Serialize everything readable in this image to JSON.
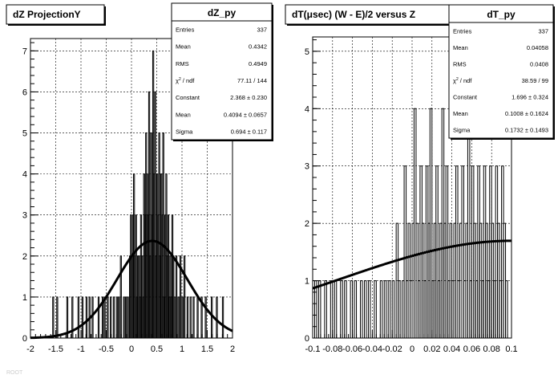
{
  "chart_data": [
    {
      "type": "bar",
      "title": "dZ ProjectionY",
      "stats_title": "dZ_py",
      "stats": [
        {
          "label": "Entries",
          "value": "337"
        },
        {
          "label": "Mean",
          "value": "0.4342"
        },
        {
          "label": "RMS",
          "value": "0.4949"
        },
        {
          "label": "χ² / ndf",
          "value": "77.11 / 144"
        },
        {
          "label": "Constant",
          "value": "2.368 ± 0.230"
        },
        {
          "label": "Mean",
          "value": "0.4094 ± 0.0657"
        },
        {
          "label": "Sigma",
          "value": "0.694 ± 0.117"
        }
      ],
      "xlim": [
        -2,
        2
      ],
      "ylim": [
        0,
        7.3
      ],
      "xticks": [
        -2,
        -1.5,
        -1,
        -0.5,
        0,
        0.5,
        1,
        1.5,
        2
      ],
      "xtick_labels": [
        "-2",
        "-1.5",
        "-1",
        "-0.5",
        "0",
        "0.5",
        "1",
        "1.5",
        "2"
      ],
      "yticks": [
        0,
        1,
        2,
        3,
        4,
        5,
        6,
        7
      ],
      "ytick_labels": [
        "0",
        "1",
        "2",
        "3",
        "4",
        "5",
        "6",
        "7"
      ],
      "grid": true,
      "bin_width": 0.02,
      "histogram": [
        [
          -1.55,
          1
        ],
        [
          -1.47,
          1
        ],
        [
          -1.27,
          1
        ],
        [
          -1.17,
          1
        ],
        [
          -1.05,
          1
        ],
        [
          -0.97,
          1
        ],
        [
          -0.89,
          1
        ],
        [
          -0.83,
          1
        ],
        [
          -0.77,
          1
        ],
        [
          -0.65,
          1
        ],
        [
          -0.57,
          1
        ],
        [
          -0.53,
          1
        ],
        [
          -0.47,
          1
        ],
        [
          -0.41,
          1
        ],
        [
          -0.35,
          1
        ],
        [
          -0.29,
          1
        ],
        [
          -0.25,
          1
        ],
        [
          -0.21,
          2
        ],
        [
          -0.15,
          1
        ],
        [
          -0.11,
          1
        ],
        [
          -0.07,
          1
        ],
        [
          -0.03,
          2
        ],
        [
          -0.01,
          3
        ],
        [
          0.01,
          2
        ],
        [
          0.03,
          3
        ],
        [
          0.05,
          4
        ],
        [
          0.07,
          2
        ],
        [
          0.09,
          3
        ],
        [
          0.11,
          1
        ],
        [
          0.13,
          2
        ],
        [
          0.15,
          2
        ],
        [
          0.17,
          1
        ],
        [
          0.19,
          3
        ],
        [
          0.21,
          2
        ],
        [
          0.23,
          1
        ],
        [
          0.25,
          4
        ],
        [
          0.27,
          3
        ],
        [
          0.29,
          5
        ],
        [
          0.31,
          4
        ],
        [
          0.33,
          3
        ],
        [
          0.35,
          6
        ],
        [
          0.37,
          2
        ],
        [
          0.39,
          5
        ],
        [
          0.41,
          3
        ],
        [
          0.43,
          7
        ],
        [
          0.45,
          4
        ],
        [
          0.47,
          6
        ],
        [
          0.49,
          2
        ],
        [
          0.51,
          4
        ],
        [
          0.53,
          3
        ],
        [
          0.55,
          5
        ],
        [
          0.57,
          2
        ],
        [
          0.59,
          4
        ],
        [
          0.61,
          3
        ],
        [
          0.63,
          5
        ],
        [
          0.65,
          1
        ],
        [
          0.67,
          3
        ],
        [
          0.69,
          4
        ],
        [
          0.71,
          2
        ],
        [
          0.73,
          3
        ],
        [
          0.75,
          1
        ],
        [
          0.77,
          2
        ],
        [
          0.79,
          1
        ],
        [
          0.81,
          3
        ],
        [
          0.83,
          2
        ],
        [
          0.85,
          1
        ],
        [
          0.89,
          2
        ],
        [
          0.93,
          1
        ],
        [
          0.97,
          2
        ],
        [
          1.01,
          1
        ],
        [
          1.05,
          2
        ],
        [
          1.11,
          1
        ],
        [
          1.17,
          1
        ],
        [
          1.23,
          1
        ],
        [
          1.31,
          1
        ],
        [
          1.39,
          1
        ],
        [
          1.47,
          1
        ],
        [
          1.59,
          1
        ],
        [
          1.69,
          1
        ],
        [
          1.81,
          1
        ]
      ],
      "fit": {
        "type": "gaus",
        "constant": 2.368,
        "mean": 0.4094,
        "sigma": 0.694
      }
    },
    {
      "type": "bar",
      "title": "dT(μsec) (W - E)/2 versus Z",
      "stats_title": "dT_py",
      "stats": [
        {
          "label": "Entries",
          "value": "337"
        },
        {
          "label": "Mean",
          "value": "0.04058"
        },
        {
          "label": "RMS",
          "value": "0.0408"
        },
        {
          "label": "χ² / ndf",
          "value": "38.59 / 99"
        },
        {
          "label": "Constant",
          "value": "1.696 ± 0.324"
        },
        {
          "label": "Mean",
          "value": "0.1008 ± 0.1624"
        },
        {
          "label": "Sigma",
          "value": "0.1732 ± 0.1493"
        }
      ],
      "xlim": [
        -0.1,
        0.1
      ],
      "ylim": [
        0,
        5.25
      ],
      "xticks": [
        -0.1,
        -0.08,
        -0.06,
        -0.04,
        -0.02,
        0,
        0.02,
        0.04,
        0.06,
        0.08,
        0.1
      ],
      "xtick_labels": [
        "-0.1",
        "-0.08",
        "-0.06",
        "-0.04",
        "-0.02",
        "0",
        "0.02",
        "0.04",
        "0.06",
        "0.08",
        "0.1"
      ],
      "yticks": [
        0,
        1,
        2,
        3,
        4,
        5
      ],
      "ytick_labels": [
        "0",
        "1",
        "2",
        "3",
        "4",
        "5"
      ],
      "grid": true,
      "bin_width": 0.002,
      "histogram": [
        [
          -0.097,
          1
        ],
        [
          -0.093,
          1
        ],
        [
          -0.087,
          1
        ],
        [
          -0.081,
          1
        ],
        [
          -0.077,
          1
        ],
        [
          -0.071,
          1
        ],
        [
          -0.067,
          1
        ],
        [
          -0.061,
          1
        ],
        [
          -0.057,
          1
        ],
        [
          -0.051,
          1
        ],
        [
          -0.047,
          1
        ],
        [
          -0.043,
          1
        ],
        [
          -0.037,
          1
        ],
        [
          -0.031,
          1
        ],
        [
          -0.027,
          1
        ],
        [
          -0.023,
          1
        ],
        [
          -0.019,
          1
        ],
        [
          -0.015,
          2
        ],
        [
          -0.013,
          1
        ],
        [
          -0.009,
          1
        ],
        [
          -0.007,
          3
        ],
        [
          -0.005,
          1
        ],
        [
          -0.003,
          2
        ],
        [
          -0.001,
          1
        ],
        [
          0.001,
          2
        ],
        [
          0.003,
          4
        ],
        [
          0.005,
          2
        ],
        [
          0.007,
          1
        ],
        [
          0.009,
          3
        ],
        [
          0.011,
          2
        ],
        [
          0.013,
          1
        ],
        [
          0.015,
          3
        ],
        [
          0.017,
          2
        ],
        [
          0.019,
          4
        ],
        [
          0.021,
          1
        ],
        [
          0.023,
          2
        ],
        [
          0.025,
          3
        ],
        [
          0.027,
          1
        ],
        [
          0.029,
          2
        ],
        [
          0.031,
          4
        ],
        [
          0.033,
          2
        ],
        [
          0.035,
          3
        ],
        [
          0.037,
          1
        ],
        [
          0.039,
          2
        ],
        [
          0.041,
          1
        ],
        [
          0.043,
          2
        ],
        [
          0.045,
          3
        ],
        [
          0.047,
          1
        ],
        [
          0.049,
          2
        ],
        [
          0.051,
          3
        ],
        [
          0.053,
          1
        ],
        [
          0.055,
          2
        ],
        [
          0.057,
          4
        ],
        [
          0.059,
          1
        ],
        [
          0.061,
          3
        ],
        [
          0.063,
          2
        ],
        [
          0.065,
          1
        ],
        [
          0.067,
          3
        ],
        [
          0.069,
          2
        ],
        [
          0.071,
          1
        ],
        [
          0.073,
          3
        ],
        [
          0.075,
          2
        ],
        [
          0.077,
          1
        ],
        [
          0.079,
          3
        ],
        [
          0.081,
          2
        ],
        [
          0.083,
          1
        ],
        [
          0.085,
          3
        ],
        [
          0.087,
          2
        ],
        [
          0.089,
          1
        ],
        [
          0.091,
          3
        ],
        [
          0.093,
          2
        ],
        [
          0.095,
          1
        ]
      ],
      "fit": {
        "type": "gaus",
        "constant": 1.696,
        "mean": 0.1008,
        "sigma": 0.1732
      }
    }
  ],
  "footer_text": "ROOT"
}
